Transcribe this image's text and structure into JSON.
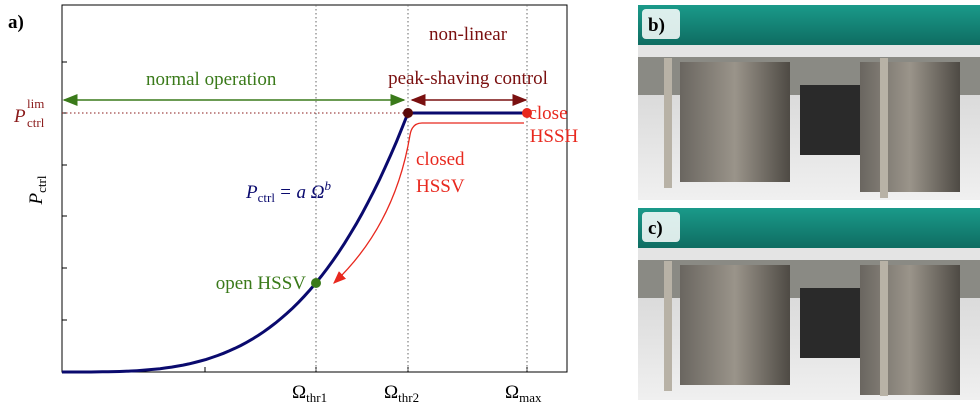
{
  "panel_labels": [
    "a)",
    "b)",
    "c)"
  ],
  "plot": {
    "y_axis_label": {
      "symbol": "P",
      "subscript": "ctrl"
    },
    "y_level_label": {
      "symbol": "P",
      "subscript": "ctrl",
      "superscript": "lim"
    },
    "x_labels": [
      {
        "symbol": "Ω",
        "subscript": "thr1"
      },
      {
        "symbol": "Ω",
        "subscript": "thr2"
      },
      {
        "symbol": "Ω",
        "subscript": "max"
      }
    ],
    "normal_operation": "normal operation",
    "peak_shaving": [
      "non-linear",
      "peak-shaving control"
    ],
    "close_hssh": [
      "close",
      "HSSH"
    ],
    "closed_hssv": [
      "closed",
      "HSSV"
    ],
    "open_hssv": "open HSSV",
    "equation": {
      "symbol": "P",
      "subscript": "ctrl",
      "rhs": "= a Ω",
      "exponent": "b"
    }
  }
}
